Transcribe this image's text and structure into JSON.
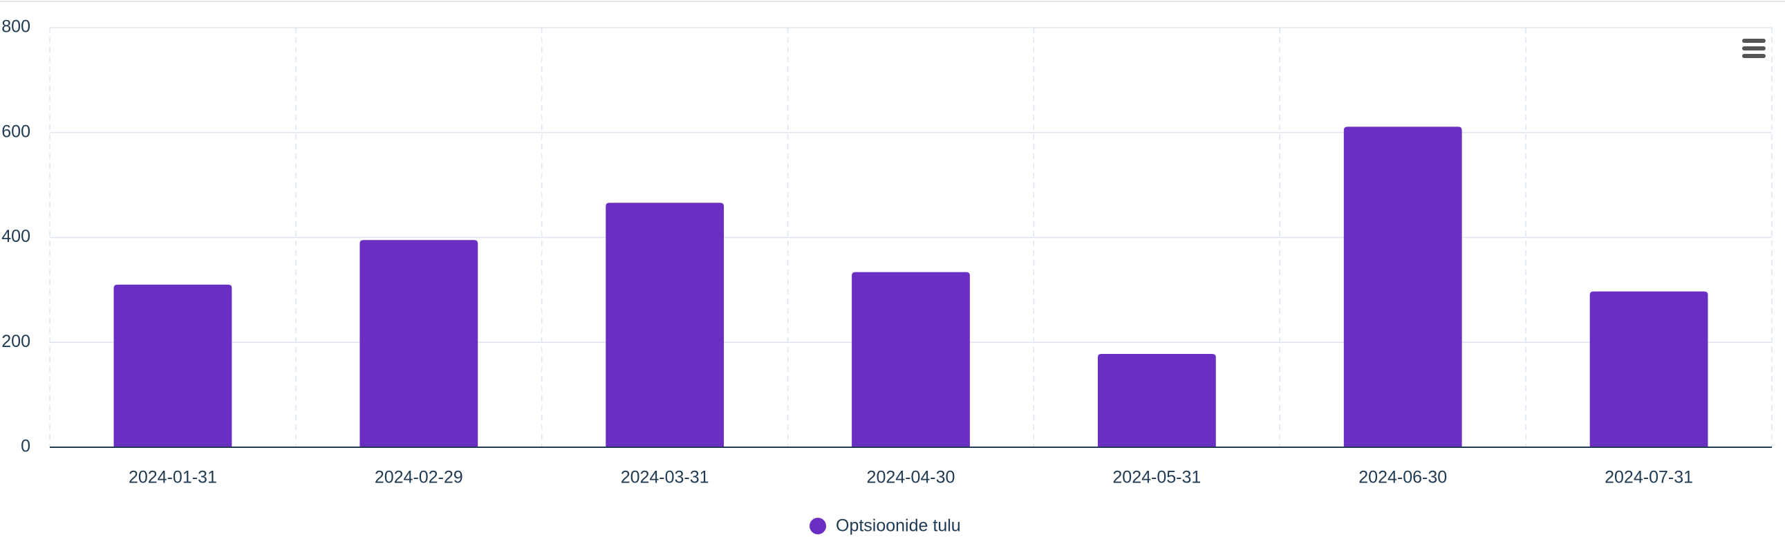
{
  "chart_data": {
    "type": "bar",
    "categories": [
      "2024-01-31",
      "2024-02-29",
      "2024-03-31",
      "2024-04-30",
      "2024-05-31",
      "2024-06-30",
      "2024-07-31"
    ],
    "series": [
      {
        "name": "Optsioonide tulu",
        "color": "#6a2fc2",
        "values": [
          310,
          395,
          466,
          334,
          178,
          611,
          297
        ]
      }
    ],
    "ylim": [
      0,
      800
    ],
    "yticks": [
      0,
      200,
      400,
      600,
      800
    ],
    "grid": true
  }
}
